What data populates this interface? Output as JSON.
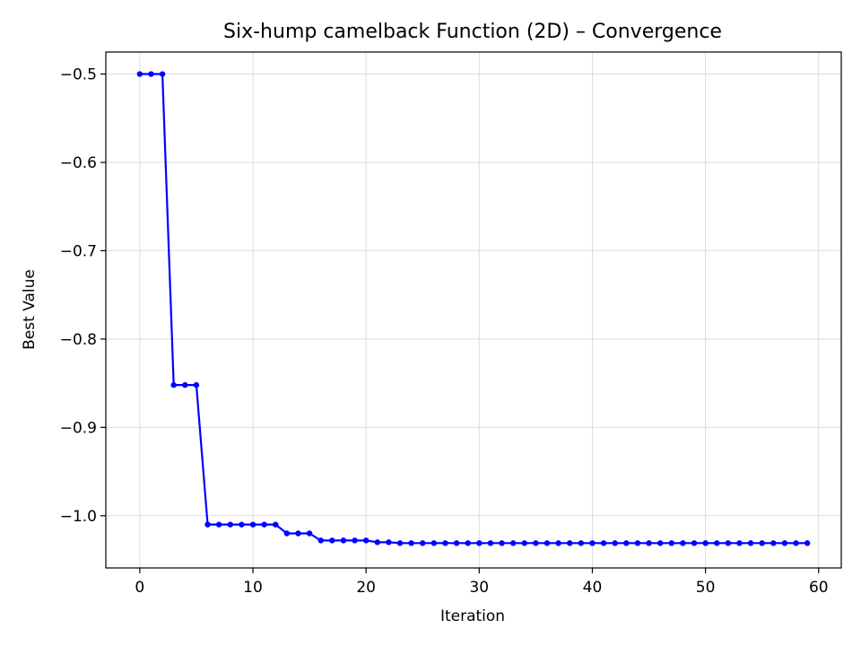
{
  "chart_data": {
    "type": "line",
    "title": "Six-hump camelback Function (2D) – Convergence",
    "xlabel": "Iteration",
    "ylabel": "Best Value",
    "xlim": [
      -3,
      62
    ],
    "ylim": [
      -1.0591,
      -0.4751
    ],
    "xticks": [
      0,
      10,
      20,
      30,
      40,
      50,
      60
    ],
    "yticks": [
      -0.5,
      -0.6,
      -0.7,
      -0.8,
      -0.9,
      -1.0
    ],
    "xtick_labels": [
      "0",
      "10",
      "20",
      "30",
      "40",
      "50",
      "60"
    ],
    "ytick_labels": [
      "−0.5",
      "−0.6",
      "−0.7",
      "−0.8",
      "−0.9",
      "−1.0"
    ],
    "grid": true,
    "line_color": "#0000ff",
    "marker": "circle",
    "series": [
      {
        "x": [
          0,
          1,
          2,
          3,
          4,
          5,
          6,
          7,
          8,
          9,
          10,
          11,
          12,
          13,
          14,
          15,
          16,
          17,
          18,
          19,
          20,
          21,
          22,
          23,
          24,
          25,
          26,
          27,
          28,
          29,
          30,
          31,
          32,
          33,
          34,
          35,
          36,
          37,
          38,
          39,
          40,
          41,
          42,
          43,
          44,
          45,
          46,
          47,
          48,
          49,
          50,
          51,
          52,
          53,
          54,
          55,
          56,
          57,
          58,
          59
        ],
        "values": [
          -0.5,
          -0.5,
          -0.5,
          -0.852,
          -0.852,
          -0.852,
          -1.01,
          -1.01,
          -1.01,
          -1.01,
          -1.01,
          -1.01,
          -1.01,
          -1.02,
          -1.02,
          -1.02,
          -1.028,
          -1.028,
          -1.028,
          -1.028,
          -1.028,
          -1.03,
          -1.03,
          -1.031,
          -1.031,
          -1.031,
          -1.031,
          -1.031,
          -1.031,
          -1.031,
          -1.031,
          -1.031,
          -1.031,
          -1.031,
          -1.031,
          -1.031,
          -1.031,
          -1.031,
          -1.031,
          -1.031,
          -1.031,
          -1.031,
          -1.031,
          -1.031,
          -1.031,
          -1.031,
          -1.031,
          -1.031,
          -1.031,
          -1.031,
          -1.031,
          -1.031,
          -1.031,
          -1.031,
          -1.031,
          -1.031,
          -1.031,
          -1.031,
          -1.031,
          -1.031
        ]
      }
    ]
  }
}
